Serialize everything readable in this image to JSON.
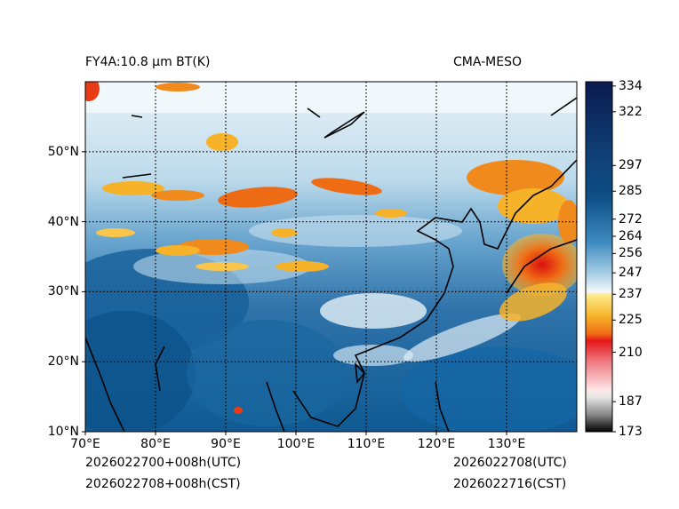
{
  "title_left": "FY4A:10.8 µm BT(K)",
  "title_right": "CMA-MESO",
  "footer": {
    "init_utc": "2026022700+008h(UTC)",
    "init_cst": "2026022708+008h(CST)",
    "valid_utc": "2026022708(UTC)",
    "valid_cst": "2026022716(CST)"
  },
  "map": {
    "lon_range": [
      70,
      140
    ],
    "lat_range": [
      10,
      60
    ],
    "lon_ticks": [
      {
        "value": 70,
        "label": "70°E"
      },
      {
        "value": 80,
        "label": "80°E"
      },
      {
        "value": 90,
        "label": "90°E"
      },
      {
        "value": 100,
        "label": "100°E"
      },
      {
        "value": 110,
        "label": "110°E"
      },
      {
        "value": 120,
        "label": "120°E"
      },
      {
        "value": 130,
        "label": "130°E"
      }
    ],
    "lat_ticks": [
      {
        "value": 10,
        "label": "10°N"
      },
      {
        "value": 20,
        "label": "20°N"
      },
      {
        "value": 30,
        "label": "30°N"
      },
      {
        "value": 40,
        "label": "40°N"
      },
      {
        "value": 50,
        "label": "50°N"
      }
    ]
  },
  "colorbar": {
    "range": [
      173,
      336
    ],
    "ticks": [
      {
        "value": 334,
        "label": "334"
      },
      {
        "value": 322,
        "label": "322"
      },
      {
        "value": 297,
        "label": "297"
      },
      {
        "value": 285,
        "label": "285"
      },
      {
        "value": 272,
        "label": "272"
      },
      {
        "value": 264,
        "label": "264"
      },
      {
        "value": 256,
        "label": "256"
      },
      {
        "value": 247,
        "label": "247"
      },
      {
        "value": 237,
        "label": "237"
      },
      {
        "value": 225,
        "label": "225"
      },
      {
        "value": 210,
        "label": "210"
      },
      {
        "value": 187,
        "label": "187"
      },
      {
        "value": 173,
        "label": "173"
      }
    ],
    "colors": {
      "warm_top": "#0b1a4f",
      "blue_dark": "#0d4f86",
      "blue_mid": "#3f8cc1",
      "blue_light": "#a9cfe5",
      "near_white": "#f4f9fc",
      "yellow": "#fbd13a",
      "orange": "#f08a1c",
      "red": "#e41717",
      "pink": "#f9c4c8",
      "grey": "#9a9a9a",
      "black": "#000000"
    }
  }
}
